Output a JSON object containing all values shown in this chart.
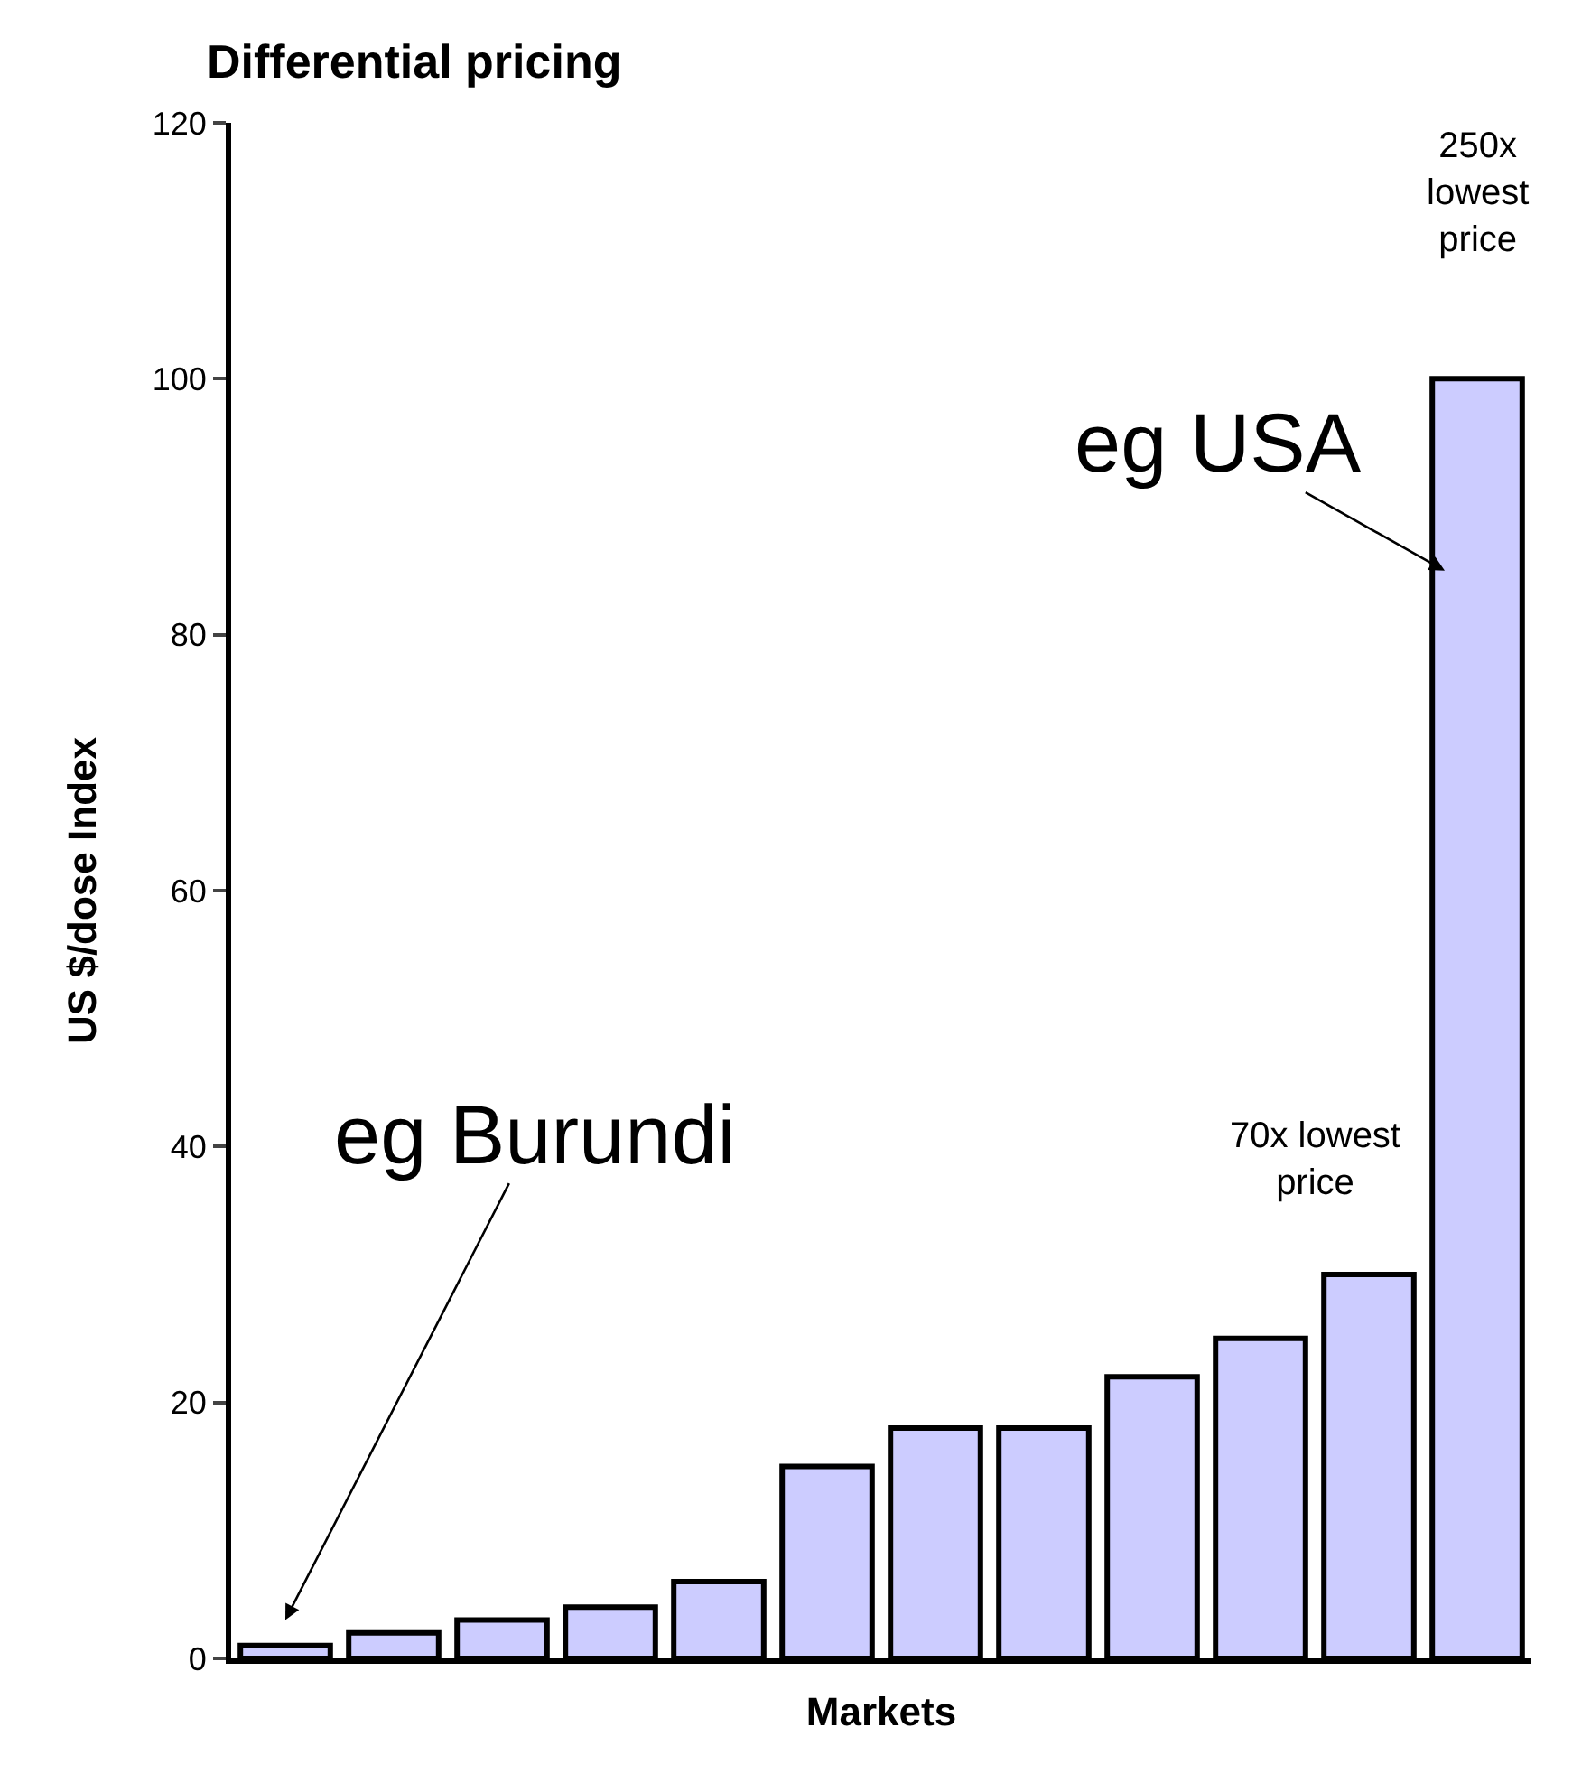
{
  "chart_data": {
    "type": "bar",
    "title": "Differential pricing",
    "xlabel": "Markets",
    "ylabel": "US $/dose Index",
    "categories": [
      null,
      null,
      null,
      null,
      null,
      null,
      null,
      null,
      null,
      null,
      null,
      null
    ],
    "values": [
      1,
      2,
      3,
      4,
      6,
      15,
      18,
      18,
      22,
      25,
      30,
      100
    ],
    "color": "#ccccff",
    "ylim": [
      0,
      120
    ],
    "yticks": [
      0,
      20,
      40,
      60,
      80,
      100,
      120
    ],
    "tick_labels": "y",
    "grid": false,
    "annotations": [
      "eg Burundi",
      "eg USA",
      "70x lowest\nprice",
      "250x\nlowest\nprice"
    ]
  }
}
